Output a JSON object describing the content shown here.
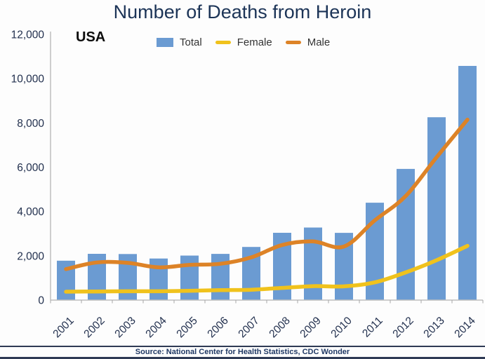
{
  "header": {
    "title": "Number of Deaths from Heroin",
    "region_label": "USA"
  },
  "footer": {
    "source": "Source: National Center for Health Statistics, CDC Wonder"
  },
  "colors": {
    "title": "#1c3457",
    "bar": "#6b9bd2",
    "female": "#f0c21c",
    "male": "#dd8327",
    "axis": "#bfbfbf",
    "tick": "#a6a6a6",
    "tick_label": "#22304e",
    "legend_text": "#333333",
    "source_text": "#1f3864",
    "divider": "#2e3a54"
  },
  "legend": [
    {
      "label": "Total",
      "swatch": "bar",
      "color": "#6b9bd2"
    },
    {
      "label": "Female",
      "swatch": "line",
      "color": "#f0c21c"
    },
    {
      "label": "Male",
      "swatch": "line",
      "color": "#dd8327"
    }
  ],
  "chart_data": {
    "type": "bar",
    "title": "Number of Deaths from Heroin",
    "subtitle": "USA",
    "xlabel": "",
    "ylabel": "",
    "categories": [
      "2001",
      "2002",
      "2003",
      "2004",
      "2005",
      "2006",
      "2007",
      "2008",
      "2009",
      "2010",
      "2011",
      "2012",
      "2013",
      "2014"
    ],
    "series": [
      {
        "name": "Total",
        "type": "bar",
        "color": "#6b9bd2",
        "values": [
          1779,
          2089,
          2080,
          1878,
          2009,
          2088,
          2399,
          3041,
          3278,
          3036,
          4397,
          5925,
          8257,
          10574
        ]
      },
      {
        "name": "Female",
        "type": "line",
        "color": "#f0c21c",
        "values": [
          380,
          390,
          400,
          400,
          420,
          450,
          470,
          550,
          630,
          620,
          800,
          1250,
          1800,
          2450
        ]
      },
      {
        "name": "Male",
        "type": "line",
        "color": "#dd8327",
        "values": [
          1400,
          1700,
          1680,
          1480,
          1590,
          1640,
          1930,
          2490,
          2650,
          2420,
          3600,
          4700,
          6450,
          8150
        ]
      }
    ],
    "ylim": [
      0,
      12000
    ],
    "yticks": [
      0,
      2000,
      4000,
      6000,
      8000,
      10000,
      12000
    ],
    "ytick_labels": [
      "0",
      "2,000",
      "4,000",
      "6,000",
      "8,000",
      "10,000",
      "12,000"
    ],
    "grid": false,
    "legend_position": "top",
    "source": "Source: National Center for Health Statistics, CDC Wonder"
  }
}
